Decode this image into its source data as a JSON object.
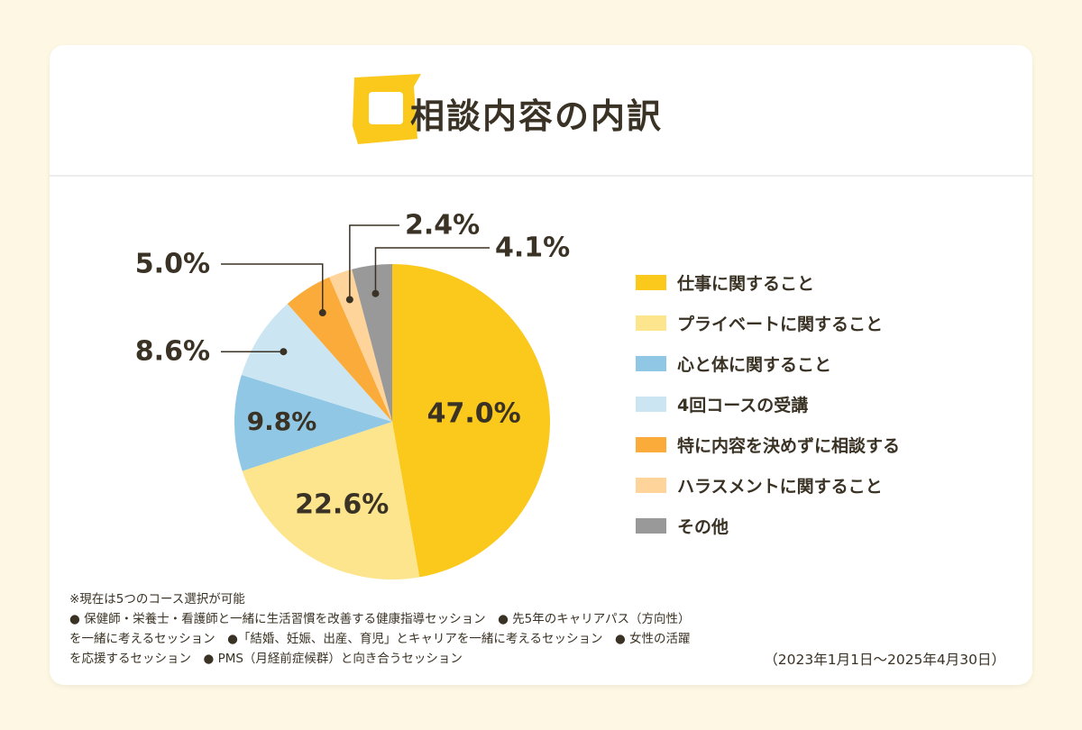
{
  "header": {
    "title": "相談内容の内訳"
  },
  "chart_data": {
    "type": "pie",
    "categories": [
      "仕事に関すること",
      "プライベートに関すること",
      "心と体に関すること",
      "4回コースの受講",
      "特に内容を決めずに相談する",
      "ハラスメントに関すること",
      "その他"
    ],
    "values": [
      47.0,
      22.6,
      9.8,
      8.6,
      5.0,
      2.4,
      4.1
    ],
    "value_labels": [
      "47.0%",
      "22.6%",
      "9.8%",
      "8.6%",
      "5.0%",
      "2.4%",
      "4.1%"
    ],
    "colors": [
      "#fbc81c",
      "#fce58d",
      "#8fc7e4",
      "#cbe6f2",
      "#fbab3a",
      "#fed49a",
      "#999999"
    ],
    "legend_position": "right"
  },
  "footnote": {
    "lines": [
      "※現在は5つのコース選択が可能",
      "● 保健師・栄養士・看護師と一緒に生活習慣を改善する健康指導セッション　● 先5年のキャリアパス（方向性）を一緒に考えるセッション　●「結婚、妊娠、出産、育児」とキャリアを一緒に考えるセッション　● 女性の活躍を応援するセッション　● PMS（月経前症候群）と向き合うセッション"
    ]
  },
  "period": "（2023年1月1日～2025年4月30日）"
}
